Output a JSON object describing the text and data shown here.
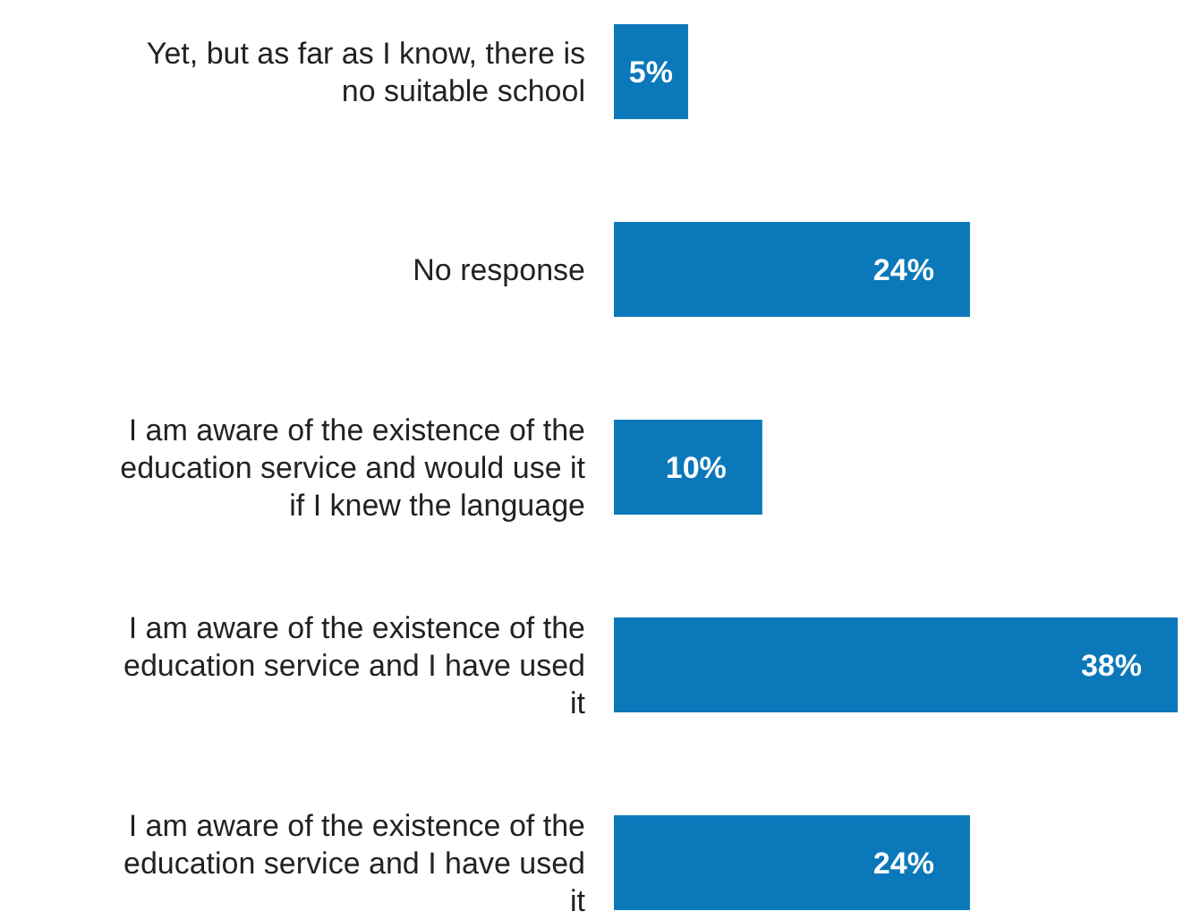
{
  "chart_data": {
    "type": "bar",
    "orientation": "horizontal",
    "categories": [
      "Yet, but as far as I know, there is no suitable school",
      "No response",
      "I am aware of the existence of the education service and would use it if I knew the language",
      "I am aware of the existence of the education service and I have used it",
      "I am aware of the existence of the education service and I have used it"
    ],
    "values": [
      5,
      24,
      10,
      38,
      24
    ],
    "value_labels": [
      "5%",
      "24%",
      "10%",
      "38%",
      "24%"
    ],
    "color": "#0a78b9",
    "xlim": [
      0,
      38
    ]
  }
}
